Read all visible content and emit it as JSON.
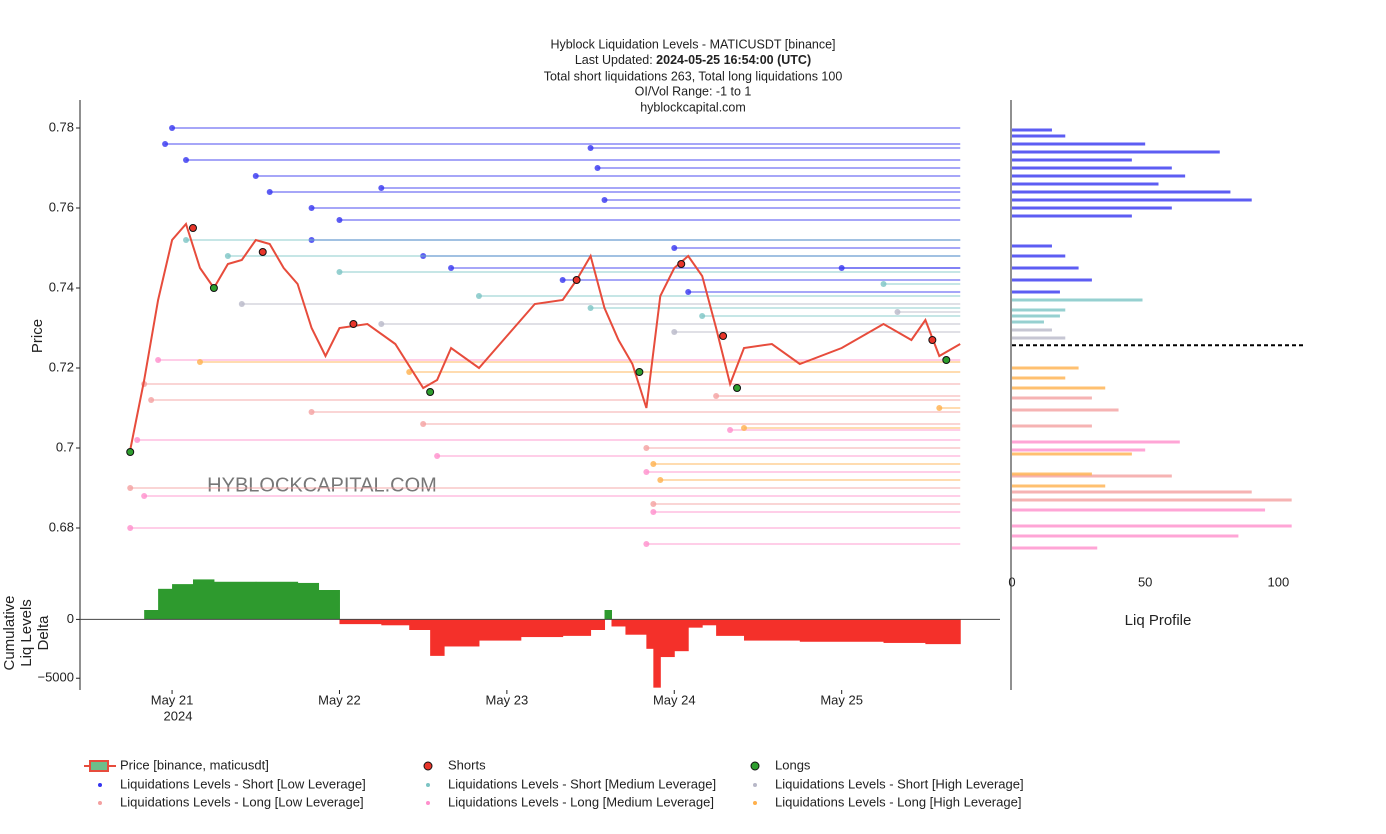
{
  "chart_data": {
    "type": "liquidation",
    "title": "Hyblock Liquidation Levels - MATICUSDT [binance]",
    "updated_prefix": "Last Updated: ",
    "updated": "2024-05-25 16:54:00 (UTC)",
    "subtitle": "Total short liquidations 263, Total long liquidations 100",
    "range_note": "OI/Vol Range: -1 to 1",
    "source": "hyblockcapital.com",
    "watermark": "HYBLOCKCAPITAL.COM",
    "ylabel": "Price",
    "delta_ylabel": [
      "Cumulative",
      "Liq Levels",
      "Delta"
    ],
    "profile_xlabel": "Liq Profile",
    "xlim": [
      "2024-05-20 10:48",
      "2024-05-25 22:42"
    ],
    "xticks": [
      {
        "value": "2024-05-21 00:00",
        "label": "May 21"
      },
      {
        "value": "2024-05-22 00:00",
        "label": "May 22"
      },
      {
        "value": "2024-05-23 00:00",
        "label": "May 23"
      },
      {
        "value": "2024-05-24 00:00",
        "label": "May 24"
      },
      {
        "value": "2024-05-25 00:00",
        "label": "May 25"
      }
    ],
    "x_year_label": "2024",
    "ylim": [
      0.672,
      0.787
    ],
    "yticks": [
      0.68,
      0.7,
      0.72,
      0.74,
      0.76,
      0.78
    ],
    "price": {
      "name": "Price [binance, maticusdt]",
      "color": "#e74c3c",
      "x": [
        "2024-05-20 18:00",
        "2024-05-20 20:00",
        "2024-05-20 22:00",
        "2024-05-21 00:00",
        "2024-05-21 02:00",
        "2024-05-21 04:00",
        "2024-05-21 06:00",
        "2024-05-21 08:00",
        "2024-05-21 10:00",
        "2024-05-21 12:00",
        "2024-05-21 14:00",
        "2024-05-21 16:00",
        "2024-05-21 18:00",
        "2024-05-21 20:00",
        "2024-05-21 22:00",
        "2024-05-22 00:00",
        "2024-05-22 04:00",
        "2024-05-22 08:00",
        "2024-05-22 12:00",
        "2024-05-22 14:00",
        "2024-05-22 16:00",
        "2024-05-22 20:00",
        "2024-05-23 00:00",
        "2024-05-23 04:00",
        "2024-05-23 08:00",
        "2024-05-23 10:00",
        "2024-05-23 12:00",
        "2024-05-23 14:00",
        "2024-05-23 16:00",
        "2024-05-23 18:00",
        "2024-05-23 20:00",
        "2024-05-23 22:00",
        "2024-05-24 00:00",
        "2024-05-24 02:00",
        "2024-05-24 04:00",
        "2024-05-24 06:00",
        "2024-05-24 08:00",
        "2024-05-24 10:00",
        "2024-05-24 14:00",
        "2024-05-24 18:00",
        "2024-05-25 00:00",
        "2024-05-25 06:00",
        "2024-05-25 10:00",
        "2024-05-25 12:00",
        "2024-05-25 14:00",
        "2024-05-25 17:00"
      ],
      "values": [
        0.6995,
        0.717,
        0.737,
        0.752,
        0.756,
        0.745,
        0.74,
        0.746,
        0.747,
        0.752,
        0.751,
        0.745,
        0.741,
        0.73,
        0.723,
        0.73,
        0.731,
        0.726,
        0.715,
        0.717,
        0.725,
        0.72,
        0.728,
        0.736,
        0.737,
        0.742,
        0.748,
        0.735,
        0.727,
        0.721,
        0.71,
        0.738,
        0.745,
        0.748,
        0.743,
        0.73,
        0.716,
        0.725,
        0.726,
        0.721,
        0.725,
        0.731,
        0.727,
        0.732,
        0.723,
        0.726
      ]
    },
    "shorts": {
      "name": "Shorts",
      "color": "#e8352a",
      "x": [
        "2024-05-21 03:00",
        "2024-05-21 13:00",
        "2024-05-22 02:00",
        "2024-05-23 10:00",
        "2024-05-24 01:00",
        "2024-05-24 07:00",
        "2024-05-25 13:00"
      ],
      "values": [
        0.755,
        0.749,
        0.731,
        0.742,
        0.746,
        0.728,
        0.727
      ]
    },
    "longs": {
      "name": "Longs",
      "color": "#2e9e2e",
      "x": [
        "2024-05-20 18:00",
        "2024-05-21 06:00",
        "2024-05-22 13:00",
        "2024-05-23 19:00",
        "2024-05-24 09:00",
        "2024-05-25 15:00"
      ],
      "values": [
        0.699,
        0.74,
        0.714,
        0.719,
        0.715,
        0.722
      ]
    },
    "series": [
      {
        "name": "Liquidations Levels - Short [Low Leverage]",
        "color": "#3434f0",
        "x": [
          "2024-05-21 00:00",
          "2024-05-20 23:00",
          "2024-05-21 02:00",
          "2024-05-21 12:00",
          "2024-05-21 14:00",
          "2024-05-21 20:00",
          "2024-05-22 00:00",
          "2024-05-23 12:00",
          "2024-05-23 13:00",
          "2024-05-22 06:00",
          "2024-05-23 14:00",
          "2024-05-21 20:00",
          "2024-05-22 12:00",
          "2024-05-22 16:00",
          "2024-05-23 08:00",
          "2024-05-24 02:00",
          "2024-05-25 00:00",
          "2024-05-24 00:00"
        ],
        "values": [
          0.78,
          0.776,
          0.772,
          0.768,
          0.764,
          0.76,
          0.757,
          0.775,
          0.77,
          0.765,
          0.762,
          0.752,
          0.748,
          0.745,
          0.742,
          0.739,
          0.745,
          0.75
        ]
      },
      {
        "name": "Liquidations Levels - Short [Medium Leverage]",
        "color": "#7cc4c4",
        "x": [
          "2024-05-21 02:00",
          "2024-05-21 08:00",
          "2024-05-22 00:00",
          "2024-05-22 20:00",
          "2024-05-23 12:00",
          "2024-05-24 04:00",
          "2024-05-25 06:00"
        ],
        "values": [
          0.752,
          0.748,
          0.744,
          0.738,
          0.735,
          0.733,
          0.741
        ]
      },
      {
        "name": "Liquidations Levels - Short [High Leverage]",
        "color": "#b8b8c8",
        "x": [
          "2024-05-21 10:00",
          "2024-05-22 06:00",
          "2024-05-24 00:00",
          "2024-05-25 08:00"
        ],
        "values": [
          0.736,
          0.731,
          0.729,
          0.734
        ]
      },
      {
        "name": "Liquidations Levels - Long [Low Leverage]",
        "color": "#f4a0a0",
        "x": [
          "2024-05-20 20:00",
          "2024-05-20 21:00",
          "2024-05-21 20:00",
          "2024-05-22 12:00",
          "2024-05-24 06:00",
          "2024-05-23 20:00",
          "2024-05-20 18:00",
          "2024-05-23 21:00"
        ],
        "values": [
          0.716,
          0.712,
          0.709,
          0.706,
          0.713,
          0.7,
          0.69,
          0.686
        ]
      },
      {
        "name": "Liquidations Levels - Long [Medium Leverage]",
        "color": "#ff8fcc",
        "x": [
          "2024-05-20 22:00",
          "2024-05-20 19:00",
          "2024-05-22 14:00",
          "2024-05-23 20:00",
          "2024-05-20 20:00",
          "2024-05-23 21:00",
          "2024-05-20 18:00",
          "2024-05-23 20:00",
          "2024-05-24 08:00"
        ],
        "values": [
          0.722,
          0.702,
          0.698,
          0.694,
          0.688,
          0.684,
          0.68,
          0.676,
          0.7045
        ]
      },
      {
        "name": "Liquidations Levels - Long [High Leverage]",
        "color": "#ffb04c",
        "x": [
          "2024-05-21 04:00",
          "2024-05-22 10:00",
          "2024-05-23 21:00",
          "2024-05-23 22:00",
          "2024-05-25 14:00",
          "2024-05-24 10:00"
        ],
        "values": [
          0.7215,
          0.719,
          0.696,
          0.692,
          0.71,
          0.705
        ]
      }
    ],
    "delta": {
      "pos_color": "#2e9a2e",
      "neg_color": "#f4302a",
      "x": [
        "2024-05-20 18:00",
        "2024-05-20 20:00",
        "2024-05-20 22:00",
        "2024-05-21 00:00",
        "2024-05-21 03:00",
        "2024-05-21 06:00",
        "2024-05-21 12:00",
        "2024-05-21 18:00",
        "2024-05-21 21:00",
        "2024-05-22 00:00",
        "2024-05-22 06:00",
        "2024-05-22 10:00",
        "2024-05-22 13:00",
        "2024-05-22 15:00",
        "2024-05-22 20:00",
        "2024-05-23 02:00",
        "2024-05-23 08:00",
        "2024-05-23 12:00",
        "2024-05-23 14:00",
        "2024-05-23 15:00",
        "2024-05-23 17:00",
        "2024-05-23 20:00",
        "2024-05-23 21:00",
        "2024-05-23 22:00",
        "2024-05-24 00:00",
        "2024-05-24 02:00",
        "2024-05-24 04:00",
        "2024-05-24 06:00",
        "2024-05-24 10:00",
        "2024-05-24 18:00",
        "2024-05-25 06:00",
        "2024-05-25 12:00"
      ],
      "values": [
        0,
        800,
        2600,
        3000,
        3400,
        3200,
        3200,
        3100,
        2500,
        -400,
        -500,
        -900,
        -3100,
        -2300,
        -1800,
        -1500,
        -1400,
        -900,
        800,
        -600,
        -1300,
        -2500,
        -5800,
        -3200,
        -2700,
        -700,
        -500,
        -1400,
        -1800,
        -1900,
        -2000,
        -2100
      ],
      "ylim": [
        -6000,
        4200
      ],
      "yticks": [
        {
          "value": -5000,
          "label": "−5000"
        },
        0
      ]
    },
    "profile": {
      "xlim": [
        0,
        110
      ],
      "xticks": [
        0,
        50,
        100
      ],
      "current_price": 0.7257,
      "groups": [
        {
          "color": "#3434f0",
          "prices": [
            0.7795,
            0.778,
            0.776,
            0.774,
            0.772,
            0.77,
            0.768,
            0.766,
            0.764,
            0.762,
            0.76,
            0.758,
            0.7505,
            0.748,
            0.745,
            0.742,
            0.739
          ],
          "values": [
            15,
            20,
            50,
            78,
            45,
            60,
            65,
            55,
            82,
            90,
            60,
            45,
            15,
            20,
            25,
            30,
            18
          ]
        },
        {
          "color": "#7cc4c4",
          "prices": [
            0.737,
            0.7345,
            0.733,
            0.7315
          ],
          "values": [
            49,
            20,
            18,
            12
          ]
        },
        {
          "color": "#b8b8c8",
          "prices": [
            0.7295,
            0.7275
          ],
          "values": [
            15,
            20
          ]
        },
        {
          "color": "#f4a0a0",
          "prices": [
            0.7125,
            0.7095,
            0.7055,
            0.693,
            0.689,
            0.687
          ],
          "values": [
            30,
            40,
            30,
            60,
            90,
            105
          ]
        },
        {
          "color": "#ff8fcc",
          "prices": [
            0.7015,
            0.6995,
            0.6845,
            0.6805,
            0.678,
            0.675
          ],
          "values": [
            63,
            50,
            95,
            105,
            85,
            32
          ]
        },
        {
          "color": "#ffb04c",
          "prices": [
            0.72,
            0.7175,
            0.715,
            0.6985,
            0.6935,
            0.6905
          ],
          "values": [
            25,
            20,
            35,
            45,
            30,
            35
          ]
        }
      ]
    }
  }
}
